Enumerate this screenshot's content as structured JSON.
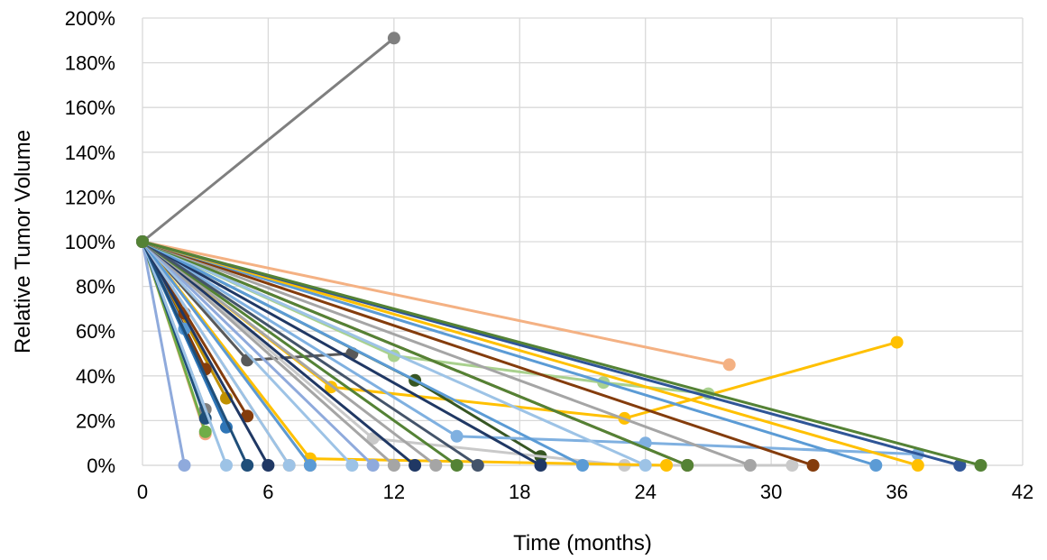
{
  "chart_data": {
    "type": "line",
    "title": "",
    "xlabel": "Time (months)",
    "ylabel": "Relative Tumor Volume",
    "xlim": [
      0,
      42
    ],
    "ylim": [
      0,
      200
    ],
    "x_ticks": [
      "0",
      "6",
      "12",
      "18",
      "24",
      "30",
      "36",
      "42"
    ],
    "y_ticks": [
      "0%",
      "20%",
      "40%",
      "60%",
      "80%",
      "100%",
      "120%",
      "140%",
      "160%",
      "180%",
      "200%"
    ],
    "grid": true,
    "legend": "none",
    "series": [
      {
        "color": "#7f7f7f",
        "points": [
          [
            0,
            100
          ],
          [
            12,
            191
          ]
        ]
      },
      {
        "color": "#f4b183",
        "points": [
          [
            0,
            100
          ],
          [
            28,
            45
          ]
        ]
      },
      {
        "color": "#ffc000",
        "points": [
          [
            0,
            100
          ],
          [
            9,
            35
          ],
          [
            23,
            21
          ],
          [
            36,
            55
          ]
        ]
      },
      {
        "color": "#a9d18e",
        "points": [
          [
            0,
            100
          ],
          [
            12,
            49
          ],
          [
            22,
            37
          ],
          [
            27,
            32
          ]
        ]
      },
      {
        "color": "#595959",
        "points": [
          [
            0,
            100
          ],
          [
            5,
            47
          ],
          [
            10,
            50
          ]
        ]
      },
      {
        "color": "#375623",
        "points": [
          [
            0,
            100
          ],
          [
            13,
            38
          ],
          [
            19,
            4
          ]
        ]
      },
      {
        "color": "#843c0c",
        "points": [
          [
            0,
            100
          ],
          [
            26,
            0
          ]
        ]
      },
      {
        "color": "#7fb0e0",
        "points": [
          [
            0,
            100
          ],
          [
            15,
            13
          ],
          [
            24,
            10
          ],
          [
            37,
            5
          ]
        ]
      },
      {
        "color": "#c9c9c9",
        "points": [
          [
            0,
            100
          ],
          [
            11,
            12
          ],
          [
            23,
            0
          ],
          [
            31,
            0
          ]
        ]
      },
      {
        "color": "#843c0c",
        "points": [
          [
            0,
            100
          ],
          [
            5,
            22
          ]
        ]
      },
      {
        "color": "#bf9000",
        "points": [
          [
            0,
            100
          ],
          [
            4,
            30
          ]
        ]
      },
      {
        "color": "#843c0c",
        "points": [
          [
            0,
            100
          ],
          [
            3,
            43
          ]
        ]
      },
      {
        "color": "#f4a582",
        "points": [
          [
            0,
            100
          ],
          [
            3,
            14
          ]
        ]
      },
      {
        "color": "#70ad47",
        "points": [
          [
            0,
            100
          ],
          [
            3,
            15
          ]
        ]
      },
      {
        "color": "#7f7f7f",
        "points": [
          [
            0,
            100
          ],
          [
            3,
            25
          ]
        ]
      },
      {
        "color": "#1f4e79",
        "points": [
          [
            0,
            100
          ],
          [
            3,
            21
          ]
        ]
      },
      {
        "color": "#5b9bd5",
        "points": [
          [
            0,
            100
          ],
          [
            2,
            61
          ]
        ]
      },
      {
        "color": "#843c0c",
        "points": [
          [
            0,
            100
          ],
          [
            2,
            68
          ]
        ]
      },
      {
        "color": "#8faadc",
        "points": [
          [
            0,
            100
          ],
          [
            2,
            0
          ]
        ]
      },
      {
        "color": "#9dc3e6",
        "points": [
          [
            0,
            100
          ],
          [
            4,
            0
          ]
        ]
      },
      {
        "color": "#2e75b6",
        "points": [
          [
            0,
            100
          ],
          [
            4,
            17
          ]
        ]
      },
      {
        "color": "#1f4e79",
        "points": [
          [
            0,
            100
          ],
          [
            5,
            0
          ]
        ]
      },
      {
        "color": "#203864",
        "points": [
          [
            0,
            100
          ],
          [
            6,
            0
          ]
        ]
      },
      {
        "color": "#f4b183",
        "points": [
          [
            0,
            100
          ],
          [
            7,
            0
          ]
        ]
      },
      {
        "color": "#9dc3e6",
        "points": [
          [
            0,
            100
          ],
          [
            7,
            0
          ]
        ]
      },
      {
        "color": "#ffc000",
        "points": [
          [
            0,
            100
          ],
          [
            8,
            3
          ],
          [
            25,
            0
          ]
        ]
      },
      {
        "color": "#f4a582",
        "points": [
          [
            0,
            100
          ],
          [
            8,
            0
          ]
        ]
      },
      {
        "color": "#5b9bd5",
        "points": [
          [
            0,
            100
          ],
          [
            8,
            0
          ]
        ]
      },
      {
        "color": "#9dc3e6",
        "points": [
          [
            0,
            100
          ],
          [
            10,
            0
          ]
        ]
      },
      {
        "color": "#8faadc",
        "points": [
          [
            0,
            100
          ],
          [
            11,
            0
          ]
        ]
      },
      {
        "color": "#a5a5a5",
        "points": [
          [
            0,
            100
          ],
          [
            12,
            0
          ]
        ]
      },
      {
        "color": "#203864",
        "points": [
          [
            0,
            100
          ],
          [
            13,
            0
          ]
        ]
      },
      {
        "color": "#a5a5a5",
        "points": [
          [
            0,
            100
          ],
          [
            14,
            0
          ]
        ]
      },
      {
        "color": "#548235",
        "points": [
          [
            0,
            100
          ],
          [
            15,
            0
          ]
        ]
      },
      {
        "color": "#44546a",
        "points": [
          [
            0,
            100
          ],
          [
            16,
            0
          ]
        ]
      },
      {
        "color": "#203864",
        "points": [
          [
            0,
            100
          ],
          [
            19,
            0
          ]
        ]
      },
      {
        "color": "#5b9bd5",
        "points": [
          [
            0,
            100
          ],
          [
            21,
            0
          ]
        ]
      },
      {
        "color": "#9dc3e6",
        "points": [
          [
            0,
            100
          ],
          [
            24,
            0
          ]
        ]
      },
      {
        "color": "#548235",
        "points": [
          [
            0,
            100
          ],
          [
            26,
            0
          ]
        ]
      },
      {
        "color": "#a5a5a5",
        "points": [
          [
            0,
            100
          ],
          [
            29,
            0
          ]
        ]
      },
      {
        "color": "#843c0c",
        "points": [
          [
            0,
            100
          ],
          [
            32,
            0
          ]
        ]
      },
      {
        "color": "#5b9bd5",
        "points": [
          [
            0,
            100
          ],
          [
            35,
            0
          ]
        ]
      },
      {
        "color": "#ffc000",
        "points": [
          [
            0,
            100
          ],
          [
            37,
            0
          ]
        ]
      },
      {
        "color": "#2f5597",
        "points": [
          [
            0,
            100
          ],
          [
            39,
            0
          ]
        ]
      },
      {
        "color": "#548235",
        "points": [
          [
            0,
            100
          ],
          [
            40,
            0
          ]
        ]
      }
    ]
  }
}
